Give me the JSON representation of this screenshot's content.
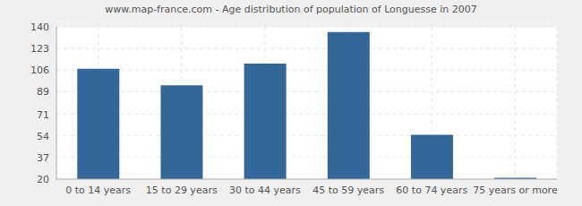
{
  "chart_data": {
    "type": "bar",
    "title": "www.map-france.com - Age distribution of population of Longuesse in 2007",
    "categories": [
      "0 to 14 years",
      "15 to 29 years",
      "30 to 44 years",
      "45 to 59 years",
      "60 to 74 years",
      "75 years or more"
    ],
    "values": [
      107,
      94,
      111,
      136,
      55,
      21
    ],
    "color": "#336699",
    "ylim": [
      20,
      140
    ],
    "yticks": [
      20,
      37,
      54,
      71,
      89,
      106,
      123,
      140
    ],
    "grid": true
  }
}
